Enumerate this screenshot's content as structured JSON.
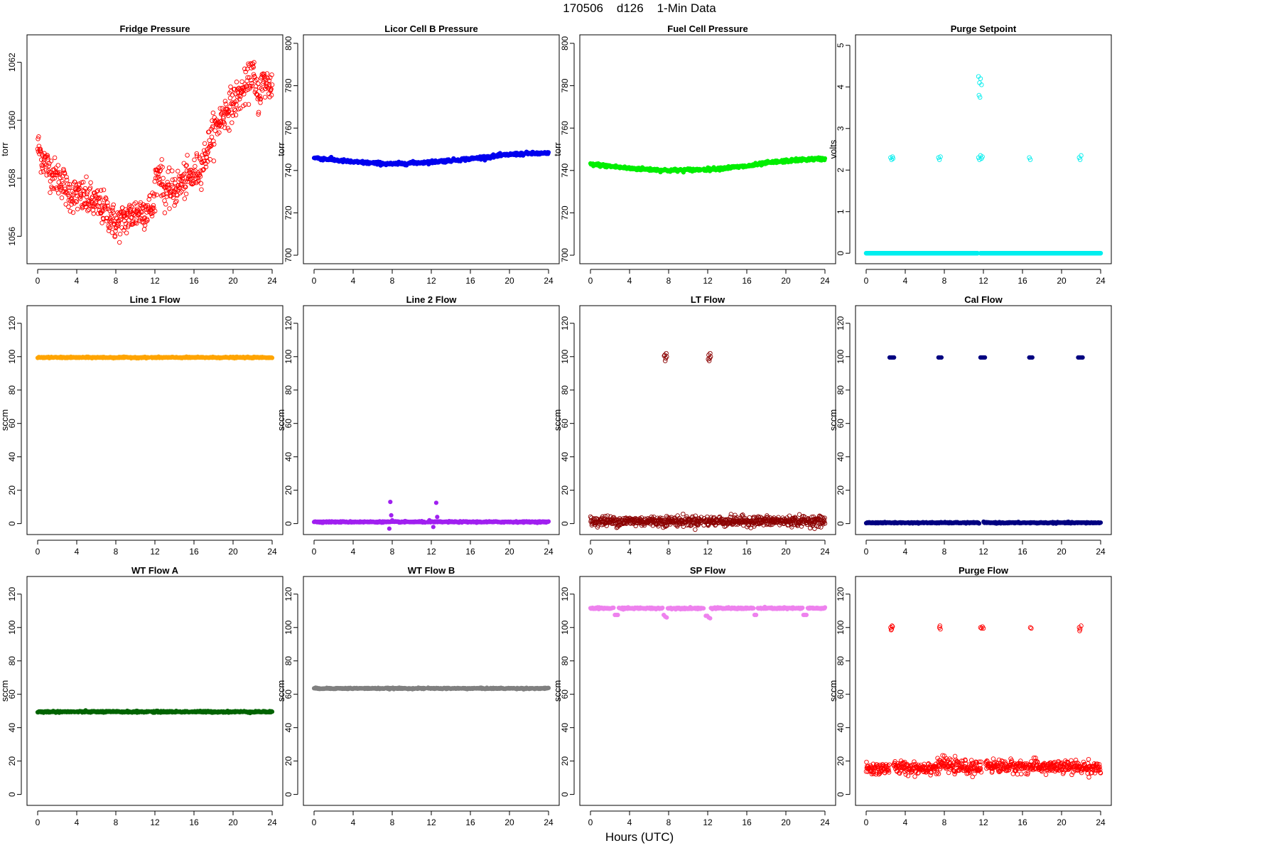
{
  "main_title": "170506    d126    1-Min Data",
  "x_label": "Hours (UTC)",
  "chart_data": [
    {
      "type": "scatter",
      "title": "Fridge Pressure",
      "ylabel": "torr",
      "color": "#ff0000",
      "marker": "open",
      "xlim": [
        0,
        24
      ],
      "xticks": [
        0,
        4,
        8,
        12,
        16,
        20,
        24
      ],
      "ylim": [
        1055.2,
        1062.8
      ],
      "yticks": [
        1056,
        1058,
        1060,
        1062
      ],
      "series": [
        {
          "trend": [
            [
              0,
              1059.1
            ],
            [
              0.5,
              1058.7
            ],
            [
              1,
              1058.4
            ],
            [
              1.5,
              1058.2
            ],
            [
              2,
              1058.0
            ],
            [
              2.6,
              1057.9
            ],
            [
              3,
              1057.5
            ],
            [
              4,
              1057.4
            ],
            [
              5,
              1057.3
            ],
            [
              6,
              1057.1
            ],
            [
              7,
              1056.9
            ],
            [
              8,
              1056.4
            ],
            [
              9,
              1056.6
            ],
            [
              10,
              1056.8
            ],
            [
              11,
              1056.9
            ],
            [
              11.9,
              1057.0
            ],
            [
              12,
              1057.9
            ],
            [
              12.5,
              1058.3
            ],
            [
              13,
              1057.5
            ],
            [
              14,
              1057.6
            ],
            [
              15,
              1057.9
            ],
            [
              16,
              1058.1
            ],
            [
              17,
              1058.6
            ],
            [
              18,
              1059.6
            ],
            [
              19,
              1060.2
            ],
            [
              20,
              1060.6
            ],
            [
              21,
              1061.0
            ],
            [
              21.5,
              1061.2
            ],
            [
              22,
              1061.8
            ],
            [
              22.3,
              1061.0
            ],
            [
              22.6,
              1060.8
            ],
            [
              23,
              1061.3
            ],
            [
              24,
              1061.2
            ]
          ],
          "scatter": 0.5
        }
      ]
    },
    {
      "type": "scatter",
      "title": "Licor Cell B Pressure",
      "ylabel": "torr",
      "color": "#0000ee",
      "marker": "filled",
      "xlim": [
        0,
        24
      ],
      "xticks": [
        0,
        4,
        8,
        12,
        16,
        20,
        24
      ],
      "ylim": [
        698,
        802
      ],
      "yticks": [
        700,
        720,
        740,
        760,
        780,
        800
      ],
      "series": [
        {
          "trend": [
            [
              0,
              746
            ],
            [
              4,
              744
            ],
            [
              8,
              743
            ],
            [
              12,
              744
            ],
            [
              16,
              745.5
            ],
            [
              18,
              746.5
            ],
            [
              20,
              747.5
            ],
            [
              22,
              748
            ],
            [
              24,
              748
            ]
          ],
          "gaps": [
            [
              11.4,
              11.6
            ]
          ],
          "scatter": 0.6
        }
      ]
    },
    {
      "type": "scatter",
      "title": "Fuel Cell Pressure",
      "ylabel": "torr",
      "color": "#00ee00",
      "marker": "filled",
      "xlim": [
        0,
        24
      ],
      "xticks": [
        0,
        4,
        8,
        12,
        16,
        20,
        24
      ],
      "ylim": [
        698,
        802
      ],
      "yticks": [
        700,
        720,
        740,
        760,
        780,
        800
      ],
      "series": [
        {
          "trend": [
            [
              0,
              743
            ],
            [
              4,
              741
            ],
            [
              8,
              740
            ],
            [
              12,
              740.5
            ],
            [
              16,
              742
            ],
            [
              18,
              743.5
            ],
            [
              20,
              744.5
            ],
            [
              22,
              745.2
            ],
            [
              24,
              745.5
            ]
          ],
          "gaps": [
            [
              11.4,
              11.6
            ]
          ],
          "scatter": 0.6
        }
      ]
    },
    {
      "type": "scatter",
      "title": "Purge Setpoint",
      "ylabel": "volts",
      "color": "#00eeee",
      "marker": "open",
      "xlim": [
        0,
        24
      ],
      "xticks": [
        0,
        4,
        8,
        12,
        16,
        20,
        24
      ],
      "ylim": [
        -0.15,
        5.15
      ],
      "yticks": [
        0,
        1,
        2,
        3,
        4,
        5
      ],
      "series": [
        {
          "trend": [
            [
              0,
              0
            ],
            [
              24,
              0
            ]
          ],
          "gaps": [
            [
              11.4,
              11.7
            ]
          ],
          "scatter": 0.0,
          "extra_points": [
            [
              2.5,
              2.3
            ],
            [
              2.6,
              2.25
            ],
            [
              2.7,
              2.32
            ],
            [
              2.75,
              2.28
            ],
            [
              7.4,
              2.3
            ],
            [
              7.5,
              2.25
            ],
            [
              7.6,
              2.32
            ],
            [
              11.5,
              2.3
            ],
            [
              11.6,
              2.25
            ],
            [
              11.7,
              2.35
            ],
            [
              11.8,
              2.28
            ],
            [
              11.9,
              2.32
            ],
            [
              11.5,
              4.25
            ],
            [
              11.6,
              4.1
            ],
            [
              11.7,
              4.2
            ],
            [
              11.8,
              4.05
            ],
            [
              11.55,
              3.8
            ],
            [
              11.65,
              3.75
            ],
            [
              16.7,
              2.3
            ],
            [
              16.8,
              2.25
            ],
            [
              21.8,
              2.3
            ],
            [
              21.9,
              2.25
            ],
            [
              22.0,
              2.35
            ]
          ]
        }
      ]
    },
    {
      "type": "scatter",
      "title": "Line 1 Flow",
      "ylabel": "sccm",
      "color": "#ffa500",
      "marker": "filled",
      "xlim": [
        0,
        24
      ],
      "xticks": [
        0,
        4,
        8,
        12,
        16,
        20,
        24
      ],
      "ylim": [
        -4,
        128
      ],
      "yticks": [
        0,
        20,
        40,
        60,
        80,
        100,
        120
      ],
      "series": [
        {
          "trend": [
            [
              0,
              99.5
            ],
            [
              24,
              99.5
            ]
          ],
          "gaps": [
            [
              11.4,
              11.6
            ]
          ],
          "scatter": 0.3
        }
      ]
    },
    {
      "type": "scatter",
      "title": "Line 2 Flow",
      "ylabel": "sccm",
      "color": "#a020f0",
      "marker": "filled",
      "xlim": [
        0,
        24
      ],
      "xticks": [
        0,
        4,
        8,
        12,
        16,
        20,
        24
      ],
      "ylim": [
        -4,
        128
      ],
      "yticks": [
        0,
        20,
        40,
        60,
        80,
        100,
        120
      ],
      "series": [
        {
          "trend": [
            [
              0,
              1
            ],
            [
              24,
              1
            ]
          ],
          "gaps": [
            [
              11.4,
              11.6
            ]
          ],
          "scatter": 0.3,
          "extra_points": [
            [
              7.8,
              13
            ],
            [
              7.9,
              5
            ],
            [
              7.7,
              -3
            ],
            [
              8.0,
              2
            ],
            [
              12.5,
              12.5
            ],
            [
              12.6,
              4
            ],
            [
              12.2,
              -2
            ],
            [
              11.8,
              2
            ]
          ]
        }
      ]
    },
    {
      "type": "scatter",
      "title": "LT Flow",
      "ylabel": "sccm",
      "color": "#8b0000",
      "marker": "open",
      "xlim": [
        0,
        24
      ],
      "xticks": [
        0,
        4,
        8,
        12,
        16,
        20,
        24
      ],
      "ylim": [
        -4,
        128
      ],
      "yticks": [
        0,
        20,
        40,
        60,
        80,
        100,
        120
      ],
      "series": [
        {
          "trend": [
            [
              0,
              1.5
            ],
            [
              24,
              1.5
            ]
          ],
          "gaps": [
            [
              11.4,
              11.6
            ]
          ],
          "scatter": 2.5,
          "extra_points": [
            [
              7.6,
              101
            ],
            [
              7.7,
              99
            ],
            [
              7.8,
              100
            ],
            [
              7.65,
              97.5
            ],
            [
              7.75,
              102
            ],
            [
              7.55,
              100.5
            ],
            [
              12.1,
              101
            ],
            [
              12.2,
              99
            ],
            [
              12.3,
              100
            ],
            [
              12.15,
              97.5
            ],
            [
              12.25,
              102
            ],
            [
              12.05,
              98.5
            ]
          ]
        }
      ]
    },
    {
      "type": "scatter",
      "title": "Cal Flow",
      "ylabel": "sccm",
      "color": "#000080",
      "marker": "filled",
      "xlim": [
        0,
        24
      ],
      "xticks": [
        0,
        4,
        8,
        12,
        16,
        20,
        24
      ],
      "ylim": [
        -4,
        128
      ],
      "yticks": [
        0,
        20,
        40,
        60,
        80,
        100,
        120
      ],
      "series": [
        {
          "trend": [
            [
              0,
              0.5
            ],
            [
              24,
              0.5
            ]
          ],
          "gaps": [
            [
              11.6,
              12.0
            ]
          ],
          "scatter": 0.3,
          "extra_points": [
            [
              2.4,
              99.5
            ],
            [
              2.55,
              99.5
            ],
            [
              2.7,
              99.5
            ],
            [
              2.85,
              99.5
            ],
            [
              7.4,
              99.5
            ],
            [
              7.55,
              99.5
            ],
            [
              7.7,
              99.5
            ],
            [
              11.7,
              99.5
            ],
            [
              11.85,
              99.5
            ],
            [
              12.0,
              99.5
            ],
            [
              12.15,
              99.5
            ],
            [
              16.7,
              99.5
            ],
            [
              16.85,
              99.5
            ],
            [
              17.0,
              99.5
            ],
            [
              21.7,
              99.5
            ],
            [
              21.85,
              99.5
            ],
            [
              22.0,
              99.5
            ],
            [
              22.15,
              99.5
            ]
          ]
        }
      ]
    },
    {
      "type": "scatter",
      "title": "WT Flow A",
      "ylabel": "sccm",
      "color": "#006400",
      "marker": "filled",
      "xlim": [
        0,
        24
      ],
      "xticks": [
        0,
        4,
        8,
        12,
        16,
        20,
        24
      ],
      "ylim": [
        -4,
        128
      ],
      "yticks": [
        0,
        20,
        40,
        60,
        80,
        100,
        120
      ],
      "series": [
        {
          "trend": [
            [
              0,
              49.5
            ],
            [
              24,
              49.5
            ]
          ],
          "gaps": [
            [
              11.4,
              11.6
            ]
          ],
          "scatter": 0.4
        }
      ]
    },
    {
      "type": "scatter",
      "title": "WT Flow B",
      "ylabel": "sccm",
      "color": "#808080",
      "marker": "filled",
      "xlim": [
        0,
        24
      ],
      "xticks": [
        0,
        4,
        8,
        12,
        16,
        20,
        24
      ],
      "ylim": [
        -4,
        128
      ],
      "yticks": [
        0,
        20,
        40,
        60,
        80,
        100,
        120
      ],
      "series": [
        {
          "trend": [
            [
              0,
              63.5
            ],
            [
              24,
              63.5
            ]
          ],
          "gaps": [
            [
              11.4,
              11.6
            ]
          ],
          "scatter": 0.3
        }
      ]
    },
    {
      "type": "scatter",
      "title": "SP Flow",
      "ylabel": "sccm",
      "color": "#ee82ee",
      "marker": "filled",
      "xlim": [
        0,
        24
      ],
      "xticks": [
        0,
        4,
        8,
        12,
        16,
        20,
        24
      ],
      "ylim": [
        -4,
        128
      ],
      "yticks": [
        0,
        20,
        40,
        60,
        80,
        100,
        120
      ],
      "series": [
        {
          "trend": [
            [
              0,
              111.5
            ],
            [
              24,
              111.5
            ]
          ],
          "gaps": [
            [
              2.4,
              2.9
            ],
            [
              7.4,
              7.9
            ],
            [
              11.6,
              12.3
            ],
            [
              16.7,
              17.1
            ],
            [
              21.7,
              22.2
            ]
          ],
          "scatter": 0.4,
          "extra_points": [
            [
              2.5,
              107.5
            ],
            [
              2.65,
              107.5
            ],
            [
              2.8,
              107.5
            ],
            [
              7.5,
              107.5
            ],
            [
              7.65,
              106.5
            ],
            [
              7.8,
              106
            ],
            [
              11.8,
              107
            ],
            [
              11.95,
              107
            ],
            [
              12.1,
              106
            ],
            [
              12.25,
              105.5
            ],
            [
              16.8,
              107.5
            ],
            [
              16.95,
              107.5
            ],
            [
              21.8,
              107.5
            ],
            [
              21.95,
              107.5
            ],
            [
              22.1,
              107.5
            ]
          ]
        }
      ]
    },
    {
      "type": "scatter",
      "title": "Purge Flow",
      "ylabel": "sccm",
      "color": "#ff0000",
      "marker": "open",
      "xlim": [
        0,
        24
      ],
      "xticks": [
        0,
        4,
        8,
        12,
        16,
        20,
        24
      ],
      "ylim": [
        -4,
        128
      ],
      "yticks": [
        0,
        20,
        40,
        60,
        80,
        100,
        120
      ],
      "series": [
        {
          "trend": [
            [
              0,
              15
            ],
            [
              2.4,
              16
            ],
            [
              7.4,
              16
            ],
            [
              7.6,
              19
            ],
            [
              8.5,
              17
            ],
            [
              11.8,
              15.5
            ],
            [
              12.0,
              19
            ],
            [
              13,
              17
            ],
            [
              24,
              16
            ]
          ],
          "gaps": [
            [
              2.4,
              2.8
            ],
            [
              11.8,
              12.2
            ]
          ],
          "scatter": 3.2,
          "extra_points": [
            [
              2.5,
              100
            ],
            [
              2.6,
              99
            ],
            [
              2.7,
              100.5
            ],
            [
              2.55,
              98.5
            ],
            [
              2.65,
              101
            ],
            [
              7.5,
              100
            ],
            [
              7.6,
              99
            ],
            [
              7.55,
              101
            ],
            [
              11.7,
              100
            ],
            [
              11.8,
              99.5
            ],
            [
              11.9,
              100.5
            ],
            [
              12.0,
              99.5
            ],
            [
              16.8,
              100
            ],
            [
              16.9,
              99.5
            ],
            [
              21.8,
              100
            ],
            [
              21.9,
              99
            ],
            [
              22.0,
              101
            ],
            [
              21.85,
              98
            ]
          ]
        }
      ]
    }
  ]
}
